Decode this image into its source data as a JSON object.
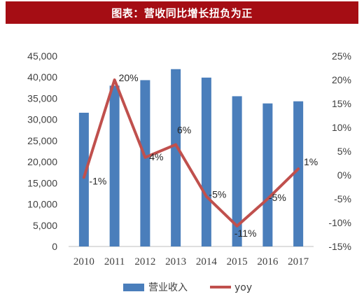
{
  "title": "图表：营收同比增长扭负为正",
  "chart_data": {
    "type": "bar+line",
    "categories": [
      "2010",
      "2011",
      "2012",
      "2013",
      "2014",
      "2015",
      "2016",
      "2017"
    ],
    "series": [
      {
        "name": "营业收入",
        "type": "bar",
        "axis": "left",
        "color": "#4a7ebb",
        "values": [
          31600,
          38000,
          39300,
          41900,
          39900,
          35500,
          33800,
          34300
        ]
      },
      {
        "name": "yoy",
        "type": "line",
        "axis": "right",
        "color": "#c0504d",
        "values": [
          -0.5,
          20,
          3.7,
          6.4,
          -4.5,
          -10.7,
          -5,
          1.3
        ],
        "data_labels": [
          "-1%",
          "20%",
          "4%",
          "6%",
          "-5%",
          "-11%",
          "-5%",
          "1%"
        ]
      }
    ],
    "y_left": {
      "lim": [
        0,
        45000
      ],
      "ticks": [
        0,
        5000,
        10000,
        15000,
        20000,
        25000,
        30000,
        35000,
        40000,
        45000
      ],
      "tick_labels": [
        "0",
        "5,000",
        "10,000",
        "15,000",
        "20,000",
        "25,000",
        "30,000",
        "35,000",
        "40,000",
        "45,000"
      ]
    },
    "y_right": {
      "lim": [
        -15,
        25
      ],
      "ticks": [
        -15,
        -10,
        -5,
        0,
        5,
        10,
        15,
        20,
        25
      ],
      "tick_labels": [
        "-15%",
        "-10%",
        "-5%",
        "0%",
        "5%",
        "10%",
        "15%",
        "20%",
        "25%"
      ]
    },
    "grid": false,
    "legend": "bottom-center"
  }
}
